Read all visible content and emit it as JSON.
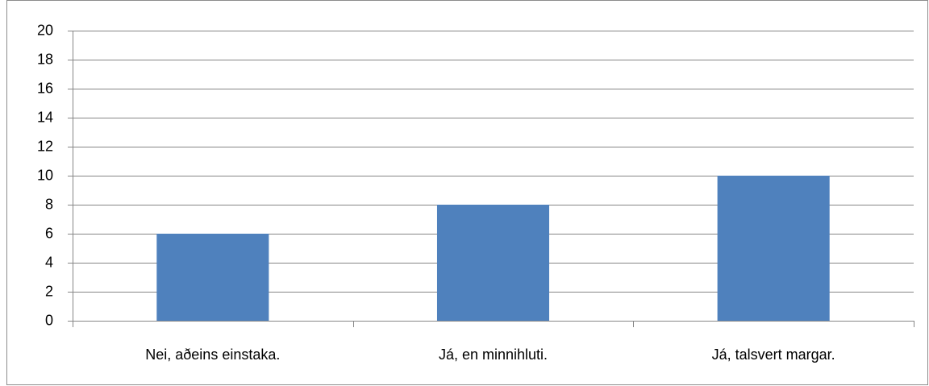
{
  "chart_data": {
    "type": "bar",
    "categories": [
      "Nei, aðeins einstaka.",
      "Já, en minnihluti.",
      "Já, talsvert margar."
    ],
    "values": [
      6,
      8,
      10
    ],
    "color": "#4f81bd",
    "ylim": [
      0,
      20
    ],
    "yticks": [
      0,
      2,
      4,
      6,
      8,
      10,
      12,
      14,
      16,
      18,
      20
    ],
    "grid": true
  }
}
